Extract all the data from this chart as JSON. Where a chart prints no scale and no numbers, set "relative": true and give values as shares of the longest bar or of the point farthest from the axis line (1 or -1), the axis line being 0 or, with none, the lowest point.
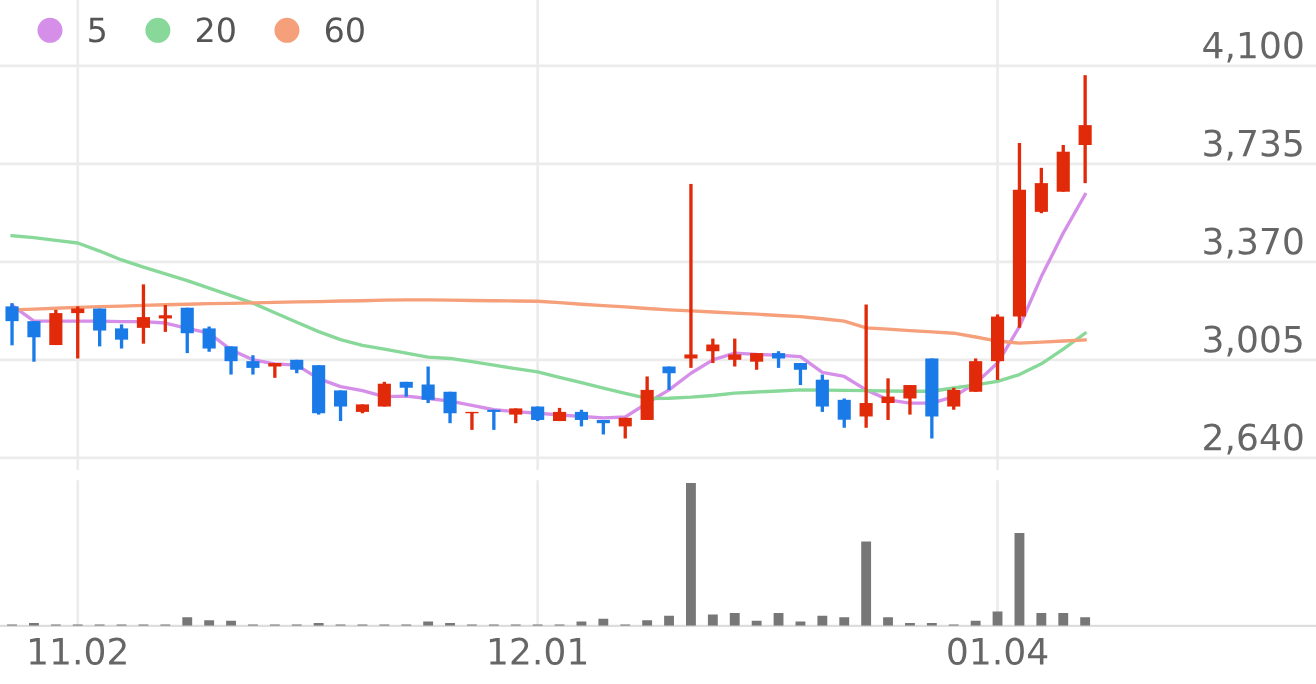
{
  "chart_data": [
    {
      "type": "candlestick",
      "categories": [
        null,
        null,
        null,
        "11.02",
        null,
        null,
        null,
        null,
        null,
        null,
        null,
        null,
        null,
        null,
        null,
        null,
        null,
        null,
        null,
        null,
        null,
        null,
        null,
        null,
        "12.01",
        null,
        null,
        null,
        null,
        null,
        null,
        null,
        null,
        null,
        null,
        null,
        null,
        null,
        null,
        null,
        null,
        null,
        null,
        null,
        null,
        "01.04",
        null,
        null,
        null,
        null
      ],
      "ohlc": [
        [
          3204,
          3216,
          3059,
          3149
        ],
        [
          3149,
          3149,
          2998,
          3089
        ],
        [
          3060,
          3191,
          3060,
          3179
        ],
        [
          3179,
          3204,
          3010,
          3196
        ],
        [
          3196,
          3196,
          3055,
          3114
        ],
        [
          3122,
          3137,
          3047,
          3080
        ],
        [
          3124,
          3286,
          3065,
          3164
        ],
        [
          3159,
          3209,
          3109,
          3171
        ],
        [
          3199,
          3199,
          3030,
          3104
        ],
        [
          3122,
          3129,
          3035,
          3047
        ],
        [
          3055,
          3055,
          2950,
          3000
        ],
        [
          3000,
          3022,
          2950,
          2975
        ],
        [
          2980,
          2993,
          2938,
          2993
        ],
        [
          3005,
          3005,
          2955,
          2968
        ],
        [
          2985,
          2985,
          2801,
          2806
        ],
        [
          2891,
          2891,
          2777,
          2831
        ],
        [
          2811,
          2839,
          2806,
          2839
        ],
        [
          2831,
          2923,
          2831,
          2916
        ],
        [
          2923,
          2923,
          2868,
          2901
        ],
        [
          2913,
          2980,
          2844,
          2856
        ],
        [
          2886,
          2886,
          2769,
          2806
        ],
        [
          2806,
          2811,
          2744,
          2811
        ],
        [
          2819,
          2819,
          2744,
          2811
        ],
        [
          2801,
          2824,
          2769,
          2824
        ],
        [
          2831,
          2831,
          2777,
          2781
        ],
        [
          2777,
          2826,
          2777,
          2811
        ],
        [
          2811,
          2819,
          2757,
          2781
        ],
        [
          2781,
          2781,
          2727,
          2769
        ],
        [
          2757,
          2789,
          2712,
          2789
        ],
        [
          2781,
          2943,
          2781,
          2893
        ],
        [
          2980,
          2980,
          2893,
          2955
        ],
        [
          3010,
          3660,
          2975,
          3025
        ],
        [
          3037,
          3084,
          2993,
          3062
        ],
        [
          3005,
          3084,
          2980,
          3025
        ],
        [
          2998,
          3030,
          2968,
          3030
        ],
        [
          3030,
          3037,
          2975,
          3010
        ],
        [
          2993,
          2993,
          2911,
          2968
        ],
        [
          2931,
          2950,
          2811,
          2831
        ],
        [
          2856,
          2861,
          2752,
          2782
        ],
        [
          2794,
          3211,
          2752,
          2844
        ],
        [
          2844,
          2936,
          2781,
          2868
        ],
        [
          2861,
          2911,
          2801,
          2911
        ],
        [
          3010,
          3010,
          2712,
          2794
        ],
        [
          2831,
          2901,
          2819,
          2893
        ],
        [
          2886,
          3010,
          2886,
          3000
        ],
        [
          3000,
          3174,
          2930,
          3166
        ],
        [
          3166,
          3812,
          3124,
          3638
        ],
        [
          3556,
          3720,
          3551,
          3663
        ],
        [
          3631,
          3805,
          3631,
          3780
        ],
        [
          3805,
          4065,
          3663,
          3879
        ]
      ],
      "colors": [
        "#1a7ae8",
        "#1a7ae8",
        "#e02a0a",
        "#e02a0a",
        "#1a7ae8",
        "#1a7ae8",
        "#e02a0a",
        "#e02a0a",
        "#1a7ae8",
        "#1a7ae8",
        "#1a7ae8",
        "#1a7ae8",
        "#e02a0a",
        "#1a7ae8",
        "#1a7ae8",
        "#1a7ae8",
        "#e02a0a",
        "#e02a0a",
        "#1a7ae8",
        "#1a7ae8",
        "#1a7ae8",
        "#e02a0a",
        "#1a7ae8",
        "#e02a0a",
        "#1a7ae8",
        "#e02a0a",
        "#1a7ae8",
        "#1a7ae8",
        "#e02a0a",
        "#e02a0a",
        "#1a7ae8",
        "#e02a0a",
        "#e02a0a",
        "#e02a0a",
        "#e02a0a",
        "#1a7ae8",
        "#1a7ae8",
        "#1a7ae8",
        "#1a7ae8",
        "#e02a0a",
        "#e02a0a",
        "#e02a0a",
        "#1a7ae8",
        "#e02a0a",
        "#e02a0a",
        "#e02a0a",
        "#e02a0a",
        "#e02a0a",
        "#e02a0a",
        "#e02a0a"
      ],
      "series": [
        {
          "name": "5",
          "type": "line",
          "color": "#d58fe8",
          "values": [
            3208,
            3149,
            3149,
            3149,
            3149,
            3147,
            3147,
            3142,
            3122,
            3104,
            3042,
            3005,
            2990,
            2985,
            2935,
            2905,
            2890,
            2868,
            2870,
            2861,
            2851,
            2835,
            2819,
            2812,
            2806,
            2800,
            2794,
            2789,
            2792,
            2844,
            2893,
            2955,
            3005,
            3030,
            3025,
            3022,
            3017,
            2958,
            2943,
            2893,
            2856,
            2844,
            2844,
            2868,
            2918,
            2993,
            3129,
            3315,
            3477,
            3621
          ]
        },
        {
          "name": "20",
          "type": "line",
          "color": "#88d89a",
          "values": [
            3467,
            3460,
            3450,
            3440,
            3410,
            3377,
            3350,
            3325,
            3300,
            3272,
            3244,
            3216,
            3180,
            3145,
            3110,
            3080,
            3059,
            3045,
            3030,
            3015,
            3010,
            2998,
            2985,
            2972,
            2960,
            2940,
            2920,
            2900,
            2880,
            2861,
            2862,
            2866,
            2872,
            2881,
            2885,
            2889,
            2893,
            2892,
            2891,
            2890,
            2889,
            2888,
            2888,
            2900,
            2912,
            2925,
            2950,
            2990,
            3045,
            3104
          ]
        },
        {
          "name": "60",
          "type": "line",
          "color": "#f5a07a",
          "values": [
            3191,
            3194,
            3197,
            3200,
            3203,
            3205,
            3208,
            3210,
            3212,
            3214,
            3215,
            3217,
            3219,
            3221,
            3222,
            3224,
            3225,
            3227,
            3228,
            3228,
            3227,
            3226,
            3225,
            3224,
            3223,
            3218,
            3212,
            3207,
            3202,
            3196,
            3191,
            3187,
            3183,
            3179,
            3175,
            3170,
            3166,
            3158,
            3149,
            3124,
            3119,
            3114,
            3109,
            3104,
            3090,
            3075,
            3067,
            3071,
            3075,
            3079
          ]
        }
      ],
      "ylim": [
        2595,
        4345
      ],
      "yticks": [
        {
          "value": 2640,
          "label": "2,640"
        },
        {
          "value": 3005,
          "label": "3,005"
        },
        {
          "value": 3370,
          "label": "3,370"
        },
        {
          "value": 3735,
          "label": "3,735"
        },
        {
          "value": 4100,
          "label": "4,100"
        }
      ],
      "grid": true,
      "legend": "top left",
      "marker": "none",
      "line_style": "solid",
      "tick_labels": "y"
    },
    {
      "type": "bar",
      "relative": true,
      "color": "#777777",
      "categories": [
        null,
        null,
        null,
        "11.02",
        null,
        null,
        null,
        null,
        null,
        null,
        null,
        null,
        null,
        null,
        null,
        null,
        null,
        null,
        null,
        null,
        null,
        null,
        null,
        null,
        "12.01",
        null,
        null,
        null,
        null,
        null,
        null,
        null,
        null,
        null,
        null,
        null,
        null,
        null,
        null,
        null,
        null,
        null,
        null,
        null,
        null,
        "01.04",
        null,
        null,
        null,
        null
      ],
      "values": [
        0.01,
        0.02,
        0.01,
        0.01,
        0.01,
        0.01,
        0.01,
        0.01,
        0.06,
        0.04,
        0.035,
        0.01,
        0.01,
        0.01,
        0.02,
        0.01,
        0.01,
        0.01,
        0.01,
        0.03,
        0.02,
        0.01,
        0.01,
        0.01,
        0.01,
        0.01,
        0.03,
        0.05,
        0.01,
        0.04,
        0.07,
        1,
        0.08,
        0.09,
        0.035,
        0.09,
        0.03,
        0.07,
        0.06,
        0.59,
        0.06,
        0.02,
        0.02,
        0.01,
        0.035,
        0.1,
        0.65,
        0.09,
        0.09,
        0.06
      ],
      "grid": "x",
      "tick_labels": "x"
    }
  ]
}
